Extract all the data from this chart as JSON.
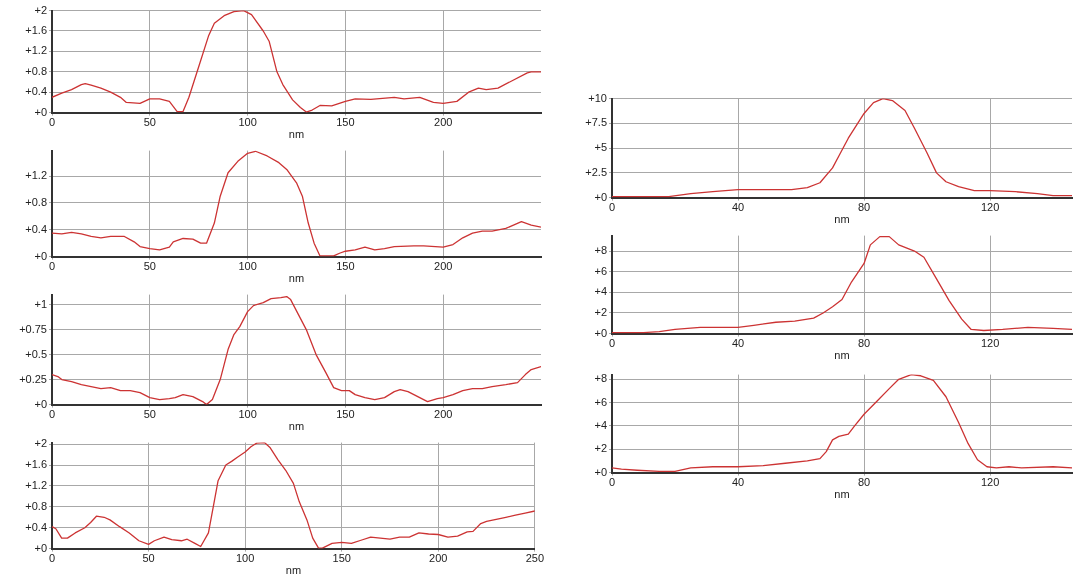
{
  "chart_data": [
    {
      "type": "line",
      "xlabel": "nm",
      "grid": true,
      "color": "#cc3333",
      "xlim": [
        0,
        250
      ],
      "ylim": [
        0,
        2
      ],
      "xticks": [
        0,
        50,
        100,
        150,
        200
      ],
      "yticks": [
        {
          "value": 0,
          "label": "+0"
        },
        {
          "value": 0.4,
          "label": "+0.4"
        },
        {
          "value": 0.8,
          "label": "+0.8"
        },
        {
          "value": 1.2,
          "label": "+1.2"
        },
        {
          "value": 1.6,
          "label": "+1.6"
        },
        {
          "value": 2,
          "label": "+2"
        }
      ],
      "x": [
        0,
        5,
        10,
        15,
        17,
        20,
        25,
        30,
        35,
        38,
        45,
        50,
        55,
        60,
        64,
        67,
        70,
        75,
        80,
        83,
        88,
        93,
        98,
        102,
        108,
        111,
        115,
        118,
        123,
        127,
        130,
        133,
        137,
        143,
        150,
        155,
        163,
        175,
        180,
        188,
        195,
        200,
        207,
        213,
        218,
        222,
        228,
        235,
        243,
        245,
        250
      ],
      "values": [
        0.3,
        0.38,
        0.45,
        0.55,
        0.57,
        0.54,
        0.48,
        0.4,
        0.3,
        0.2,
        0.18,
        0.27,
        0.27,
        0.22,
        0.02,
        0.02,
        0.3,
        0.9,
        1.5,
        1.75,
        1.9,
        1.98,
        2.0,
        1.92,
        1.6,
        1.4,
        0.8,
        0.55,
        0.25,
        0.1,
        0.01,
        0.05,
        0.14,
        0.13,
        0.22,
        0.27,
        0.26,
        0.3,
        0.27,
        0.3,
        0.2,
        0.18,
        0.22,
        0.4,
        0.48,
        0.45,
        0.48,
        0.62,
        0.78,
        0.8,
        0.8
      ]
    },
    {
      "type": "line",
      "xlabel": "nm",
      "grid": true,
      "color": "#cc3333",
      "xlim": [
        0,
        250
      ],
      "ylim": [
        0,
        1.58
      ],
      "xticks": [
        0,
        50,
        100,
        150,
        200
      ],
      "yticks": [
        {
          "value": 0,
          "label": "+0"
        },
        {
          "value": 0.4,
          "label": "+0.4"
        },
        {
          "value": 0.8,
          "label": "+0.8"
        },
        {
          "value": 1.2,
          "label": "+1.2"
        }
      ],
      "x": [
        0,
        5,
        10,
        15,
        20,
        25,
        30,
        37,
        42,
        45,
        50,
        55,
        60,
        62,
        67,
        72,
        76,
        79,
        83,
        86,
        90,
        95,
        100,
        104,
        110,
        116,
        120,
        125,
        128,
        131,
        134,
        137,
        144,
        147,
        150,
        155,
        160,
        165,
        170,
        175,
        185,
        190,
        200,
        205,
        210,
        215,
        220,
        225,
        232,
        240,
        245,
        250
      ],
      "values": [
        0.35,
        0.34,
        0.36,
        0.34,
        0.3,
        0.28,
        0.3,
        0.3,
        0.22,
        0.15,
        0.12,
        0.1,
        0.14,
        0.22,
        0.27,
        0.26,
        0.2,
        0.2,
        0.5,
        0.9,
        1.25,
        1.42,
        1.54,
        1.57,
        1.5,
        1.4,
        1.3,
        1.1,
        0.9,
        0.5,
        0.2,
        0.01,
        0.01,
        0.05,
        0.08,
        0.1,
        0.14,
        0.1,
        0.12,
        0.15,
        0.16,
        0.16,
        0.14,
        0.18,
        0.28,
        0.35,
        0.38,
        0.38,
        0.42,
        0.52,
        0.47,
        0.44
      ]
    },
    {
      "type": "line",
      "xlabel": "nm",
      "grid": true,
      "color": "#cc3333",
      "xlim": [
        0,
        250
      ],
      "ylim": [
        0,
        1.1
      ],
      "xticks": [
        0,
        50,
        100,
        150,
        200
      ],
      "yticks": [
        {
          "value": 0,
          "label": "+0"
        },
        {
          "value": 0.25,
          "label": "+0.25"
        },
        {
          "value": 0.5,
          "label": "+0.5"
        },
        {
          "value": 0.75,
          "label": "+0.75"
        },
        {
          "value": 1,
          "label": "+1"
        }
      ],
      "x": [
        0,
        3,
        5,
        10,
        15,
        20,
        25,
        30,
        35,
        40,
        45,
        50,
        55,
        60,
        63,
        67,
        72,
        77,
        79,
        82,
        86,
        90,
        93,
        96,
        100,
        103,
        108,
        112,
        117,
        120,
        122,
        126,
        130,
        135,
        140,
        144,
        148,
        152,
        155,
        160,
        165,
        170,
        175,
        178,
        182,
        187,
        192,
        197,
        200,
        205,
        210,
        215,
        220,
        225,
        232,
        238,
        242,
        245,
        250
      ],
      "values": [
        0.3,
        0.28,
        0.25,
        0.23,
        0.2,
        0.18,
        0.16,
        0.17,
        0.14,
        0.14,
        0.12,
        0.07,
        0.05,
        0.06,
        0.07,
        0.1,
        0.08,
        0.03,
        0.0,
        0.05,
        0.25,
        0.55,
        0.7,
        0.78,
        0.93,
        0.99,
        1.02,
        1.06,
        1.07,
        1.08,
        1.05,
        0.9,
        0.75,
        0.5,
        0.32,
        0.17,
        0.14,
        0.14,
        0.1,
        0.07,
        0.05,
        0.07,
        0.13,
        0.15,
        0.13,
        0.08,
        0.03,
        0.06,
        0.07,
        0.1,
        0.14,
        0.16,
        0.16,
        0.18,
        0.2,
        0.22,
        0.3,
        0.35,
        0.38
      ]
    },
    {
      "type": "line",
      "xlabel": "nm",
      "grid": true,
      "color": "#cc3333",
      "xlim": [
        0,
        250
      ],
      "ylim": [
        0,
        2.03
      ],
      "xticks": [
        0,
        50,
        100,
        150,
        200,
        250
      ],
      "yticks": [
        {
          "value": 0,
          "label": "+0"
        },
        {
          "value": 0.4,
          "label": "+0.4"
        },
        {
          "value": 0.8,
          "label": "+0.8"
        },
        {
          "value": 1.2,
          "label": "+1.2"
        },
        {
          "value": 1.6,
          "label": "+1.6"
        },
        {
          "value": 2,
          "label": "+2"
        }
      ],
      "x": [
        0,
        2,
        5,
        8,
        12,
        17,
        20,
        23,
        27,
        30,
        35,
        40,
        45,
        50,
        53,
        58,
        62,
        67,
        70,
        74,
        77,
        81,
        84,
        86,
        90,
        93,
        96,
        100,
        103,
        106,
        110,
        113,
        117,
        121,
        125,
        128,
        132,
        135,
        138,
        140,
        145,
        150,
        155,
        160,
        165,
        170,
        175,
        180,
        185,
        190,
        195,
        200,
        205,
        210,
        215,
        218,
        222,
        225,
        230,
        235,
        240,
        245,
        250
      ],
      "values": [
        0.42,
        0.38,
        0.2,
        0.2,
        0.3,
        0.4,
        0.5,
        0.62,
        0.6,
        0.55,
        0.42,
        0.3,
        0.15,
        0.08,
        0.15,
        0.22,
        0.17,
        0.15,
        0.18,
        0.1,
        0.04,
        0.3,
        0.9,
        1.3,
        1.6,
        1.67,
        1.75,
        1.85,
        1.95,
        2.02,
        2.03,
        1.93,
        1.7,
        1.5,
        1.25,
        0.9,
        0.55,
        0.2,
        0.01,
        0.01,
        0.1,
        0.12,
        0.1,
        0.16,
        0.22,
        0.2,
        0.18,
        0.22,
        0.22,
        0.3,
        0.28,
        0.27,
        0.22,
        0.24,
        0.32,
        0.33,
        0.48,
        0.52,
        0.56,
        0.6,
        0.64,
        0.68,
        0.72
      ]
    },
    {
      "type": "line",
      "xlabel": "nm",
      "grid": true,
      "color": "#cc3333",
      "xlim": [
        0,
        146
      ],
      "ylim": [
        0,
        10
      ],
      "xticks": [
        0,
        40,
        80,
        120
      ],
      "yticks": [
        {
          "value": 0,
          "label": "+0"
        },
        {
          "value": 2.5,
          "label": "+2.5"
        },
        {
          "value": 5,
          "label": "+5"
        },
        {
          "value": 7.5,
          "label": "+7.5"
        },
        {
          "value": 10,
          "label": "+10"
        }
      ],
      "x": [
        0,
        10,
        18,
        25,
        32,
        40,
        45,
        50,
        57,
        62,
        66,
        70,
        72,
        75,
        80,
        83,
        86,
        89,
        93,
        96,
        100,
        103,
        106,
        110,
        115,
        120,
        128,
        135,
        140,
        146
      ],
      "values": [
        0.1,
        0.1,
        0.1,
        0.4,
        0.6,
        0.8,
        0.8,
        0.8,
        0.8,
        1.0,
        1.5,
        3,
        4.2,
        6,
        8.5,
        9.6,
        10,
        9.8,
        8.8,
        7,
        4.5,
        2.5,
        1.6,
        1.1,
        0.7,
        0.7,
        0.6,
        0.4,
        0.2,
        0.2
      ]
    },
    {
      "type": "line",
      "xlabel": "nm",
      "grid": true,
      "color": "#cc3333",
      "xlim": [
        0,
        146
      ],
      "ylim": [
        0,
        9.5
      ],
      "xticks": [
        0,
        40,
        80,
        120
      ],
      "yticks": [
        {
          "value": 0,
          "label": "+0"
        },
        {
          "value": 2,
          "label": "+2"
        },
        {
          "value": 4,
          "label": "+4"
        },
        {
          "value": 6,
          "label": "+6"
        },
        {
          "value": 8,
          "label": "+8"
        }
      ],
      "x": [
        0,
        10,
        15,
        20,
        28,
        35,
        40,
        45,
        52,
        58,
        64,
        67,
        70,
        73,
        76,
        80,
        82,
        85,
        88,
        91,
        96,
        99,
        103,
        107,
        111,
        114,
        118,
        124,
        132,
        140,
        146
      ],
      "values": [
        0.1,
        0.1,
        0.2,
        0.4,
        0.6,
        0.6,
        0.6,
        0.8,
        1.1,
        1.2,
        1.5,
        2.0,
        2.6,
        3.3,
        5,
        6.8,
        8.6,
        9.4,
        9.4,
        8.6,
        8,
        7.4,
        5.3,
        3.2,
        1.4,
        0.4,
        0.3,
        0.4,
        0.6,
        0.5,
        0.4
      ]
    },
    {
      "type": "line",
      "xlabel": "nm",
      "grid": true,
      "color": "#cc3333",
      "xlim": [
        0,
        146
      ],
      "ylim": [
        0,
        8.4
      ],
      "xticks": [
        0,
        40,
        80,
        120
      ],
      "yticks": [
        {
          "value": 0,
          "label": "+0"
        },
        {
          "value": 2,
          "label": "+2"
        },
        {
          "value": 4,
          "label": "+4"
        },
        {
          "value": 6,
          "label": "+6"
        },
        {
          "value": 8,
          "label": "+8"
        }
      ],
      "x": [
        0,
        3,
        8,
        15,
        20,
        25,
        32,
        40,
        48,
        55,
        62,
        66,
        68,
        70,
        72,
        75,
        77,
        80,
        84,
        88,
        91,
        95,
        98,
        102,
        106,
        110,
        113,
        116,
        119,
        122,
        126,
        130,
        140,
        146
      ],
      "values": [
        0.4,
        0.3,
        0.2,
        0.1,
        0.1,
        0.4,
        0.5,
        0.5,
        0.6,
        0.8,
        1.0,
        1.2,
        1.8,
        2.8,
        3.1,
        3.3,
        4.0,
        5.0,
        6.1,
        7.2,
        8.0,
        8.4,
        8.3,
        7.9,
        6.5,
        4.3,
        2.5,
        1.1,
        0.5,
        0.4,
        0.5,
        0.4,
        0.5,
        0.4
      ]
    }
  ]
}
